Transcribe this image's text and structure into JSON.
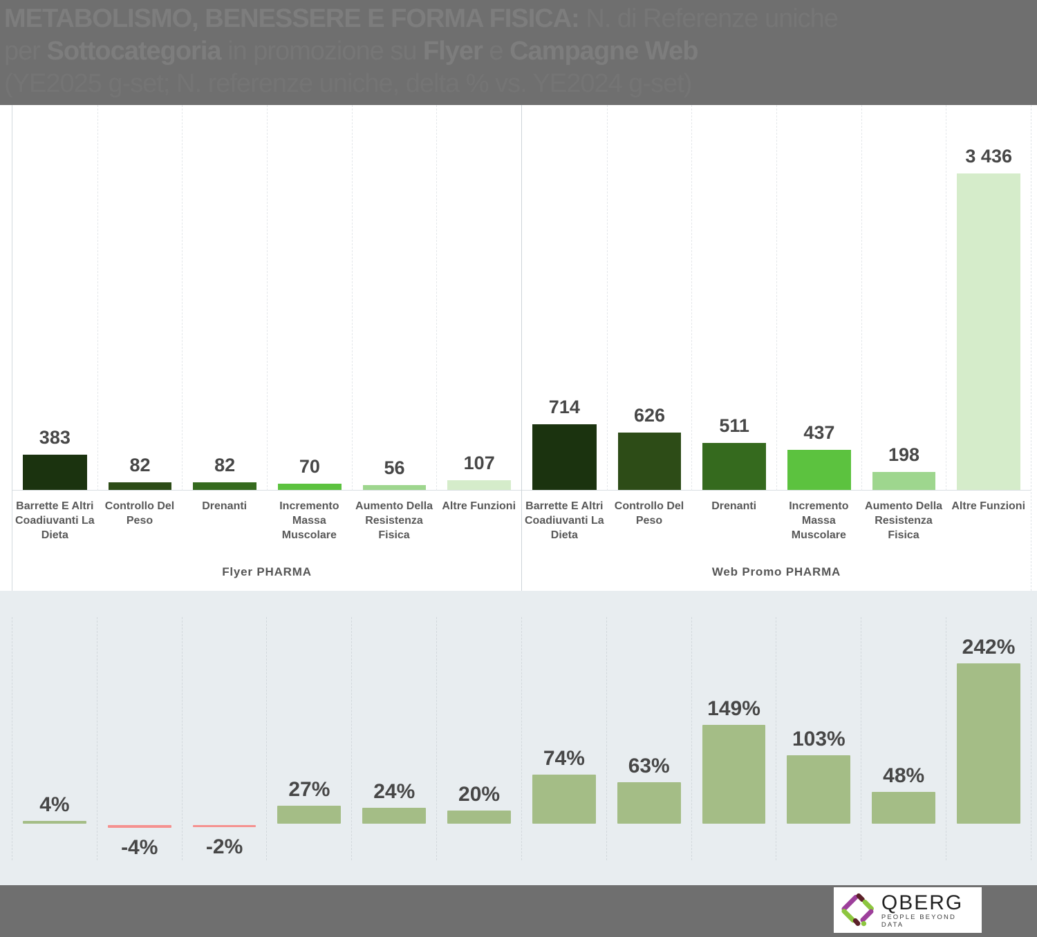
{
  "header": {
    "line1_bold": "METABOLISMO, BENESSERE E FORMA FISICA:",
    "line1_rest": " N. di Referenze uniche",
    "line2_t1": "per ",
    "line2_b1": "Sottocategoria",
    "line2_t2": " in promozione su ",
    "line2_b2": "Flyer",
    "line2_t3": " e ",
    "line2_b3": "Campagne Web",
    "line3": "(YE2025 g-set; N. referenze uniche, delta % vs. YE2024 g-set)"
  },
  "chart_data": [
    {
      "type": "bar",
      "title": "N. di Referenze uniche per Sottocategoria",
      "categories": [
        "Barrette E Altri Coadiuvanti La Dieta",
        "Controllo Del Peso",
        "Drenanti",
        "Incremento Massa Muscolare",
        "Aumento Della Resistenza Fisica",
        "Altre Funzioni"
      ],
      "series": [
        {
          "name": "Flyer PHARMA",
          "values": [
            383,
            82,
            82,
            70,
            56,
            107
          ],
          "labels": [
            "383",
            "82",
            "82",
            "70",
            "56",
            "107"
          ]
        },
        {
          "name": "Web Promo PHARMA",
          "values": [
            714,
            626,
            511,
            437,
            198,
            3436
          ],
          "labels": [
            "714",
            "626",
            "511",
            "437",
            "198",
            "3 436"
          ]
        }
      ],
      "bar_colors_by_category": [
        "#1b330f",
        "#2d4c17",
        "#356a1e",
        "#5cc23f",
        "#9ed68e",
        "#d5ecca"
      ],
      "ylim": [
        0,
        3600
      ],
      "grid": "vertical-dashed",
      "legend": "none",
      "background": "#ffffff"
    },
    {
      "type": "bar",
      "title": "delta % vs. YE2024 g-set",
      "categories": [
        "Barrette E Altri Coadiuvanti La Dieta",
        "Controllo Del Peso",
        "Drenanti",
        "Incremento Massa Muscolare",
        "Aumento Della Resistenza Fisica",
        "Altre Funzioni",
        "Barrette E Altri Coadiuvanti La Dieta",
        "Controllo Del Peso",
        "Drenanti",
        "Incremento Massa Muscolare",
        "Aumento Della Resistenza Fisica",
        "Altre Funzioni"
      ],
      "values": [
        4,
        -4,
        -2,
        27,
        24,
        20,
        74,
        63,
        149,
        103,
        48,
        242
      ],
      "labels": [
        "4%",
        "-4%",
        "-2%",
        "27%",
        "24%",
        "20%",
        "74%",
        "63%",
        "149%",
        "103%",
        "48%",
        "242%"
      ],
      "positive_color": "#a4bd86",
      "negative_color": "#f5918f",
      "ylim": [
        -20,
        260
      ],
      "grid": "vertical-dashed",
      "background": "#e8edf0"
    }
  ],
  "footer": {
    "logo_text": "QBERG",
    "logo_tagline": "PEOPLE BEYOND DATA",
    "logo_colors": {
      "green": "#8dc63f",
      "purple": "#9d3f9b",
      "maroon": "#5c2129"
    }
  }
}
